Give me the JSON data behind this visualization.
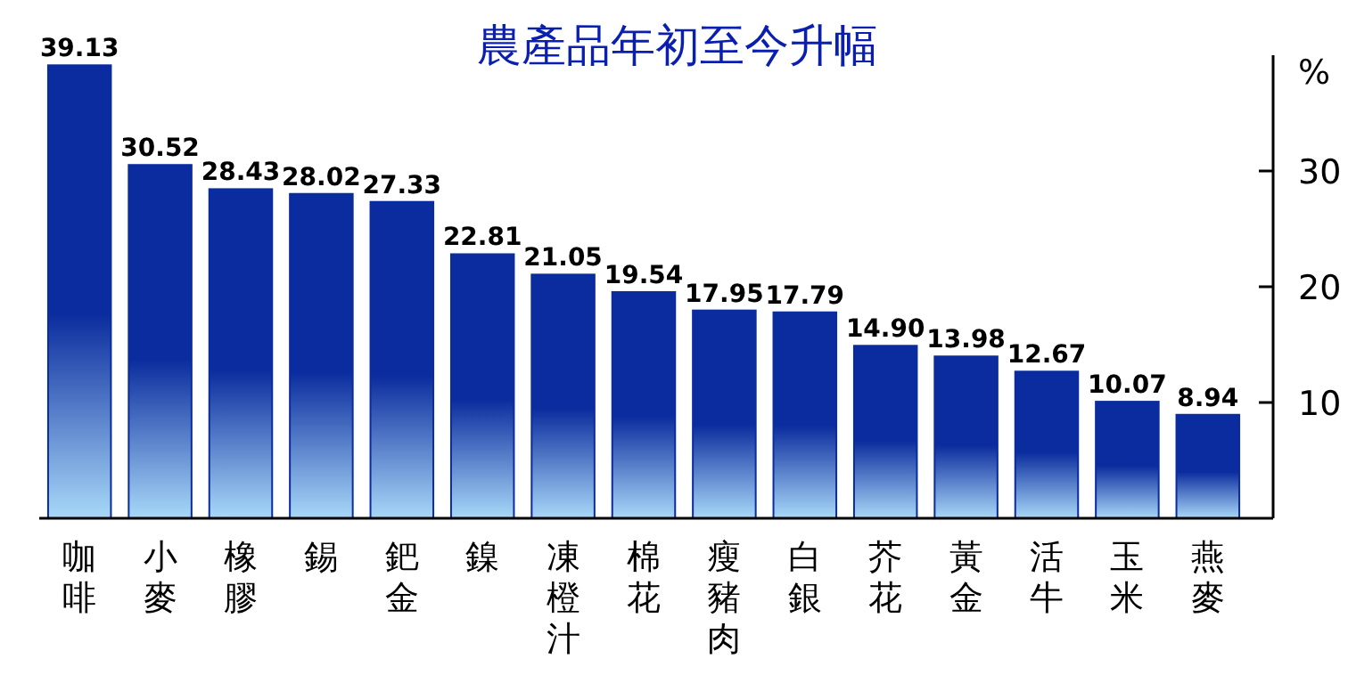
{
  "chart_data": {
    "type": "bar",
    "title": "農產品年初至今升幅",
    "ylabel": "%",
    "categories": [
      "咖啡",
      "小麥",
      "橡膠",
      "錫",
      "鈀金",
      "鎳",
      "凍橙汁",
      "棉花",
      "瘦豬肉",
      "白銀",
      "芥花",
      "黃金",
      "活牛",
      "玉米",
      "燕麥"
    ],
    "values": [
      39.13,
      30.52,
      28.43,
      28.02,
      27.33,
      22.81,
      21.05,
      19.54,
      17.95,
      17.79,
      14.9,
      13.98,
      12.67,
      10.07,
      8.94
    ],
    "value_labels": [
      "39.13",
      "30.52",
      "28.43",
      "28.02",
      "27.33",
      "22.81",
      "21.05",
      "19.54",
      "17.95",
      "17.79",
      "14.90",
      "13.98",
      "12.67",
      "10.07",
      "8.94"
    ],
    "color": "#0b2c9e",
    "ylim": [
      0,
      40
    ],
    "yticks": [
      10,
      20,
      30
    ]
  }
}
